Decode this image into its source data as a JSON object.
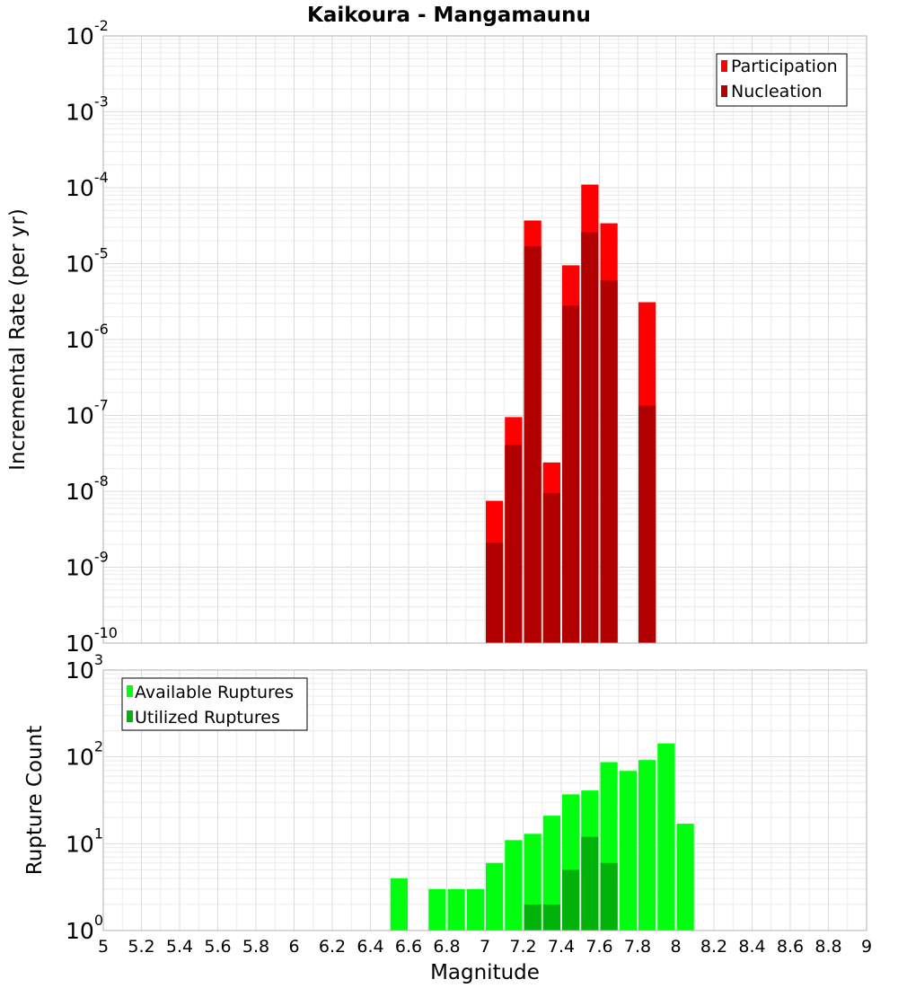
{
  "chart_data": [
    {
      "type": "bar",
      "title": "Kaikoura - Mangamaunu",
      "ylabel": "Incremental Rate (per yr)",
      "xlabel": "",
      "yscale": "log",
      "ylim_exp": [
        -10,
        -2
      ],
      "y_tick_exponents": [
        "-2",
        "-3",
        "-4",
        "-5",
        "-6",
        "-7",
        "-8",
        "-9",
        "-10"
      ],
      "legend": {
        "placement": "top-right",
        "entries": [
          "Participation",
          "Nucleation"
        ]
      },
      "grid": true,
      "bar_width": 0.1,
      "x": [
        7.05,
        7.15,
        7.25,
        7.35,
        7.45,
        7.55,
        7.65,
        7.85
      ],
      "series": [
        {
          "name": "Participation",
          "color": "#ff0000",
          "values": [
            7.5e-09,
            9.5e-08,
            3.7e-05,
            2.4e-08,
            9.5e-06,
            0.00011,
            3.4e-05,
            3.1e-06
          ]
        },
        {
          "name": "Nucleation",
          "color": "#b20000",
          "values": [
            2.1e-09,
            4.1e-08,
            1.7e-05,
            9.5e-09,
            2.8e-06,
            2.6e-05,
            6e-06,
            1.35e-07
          ]
        }
      ]
    },
    {
      "type": "bar",
      "ylabel": "Rupture Count",
      "xlabel": "Magnitude",
      "yscale": "log",
      "ylim_exp": [
        0,
        3
      ],
      "y_tick_exponents": [
        "3",
        "2",
        "1",
        "0"
      ],
      "legend": {
        "placement": "top-left",
        "entries": [
          "Available Ruptures",
          "Utilized Ruptures"
        ]
      },
      "grid": true,
      "bar_width": 0.1,
      "x": [
        6.55,
        6.75,
        6.85,
        6.95,
        7.05,
        7.15,
        7.25,
        7.35,
        7.45,
        7.55,
        7.65,
        7.75,
        7.85,
        7.95,
        8.05
      ],
      "series": [
        {
          "name": "Available Ruptures",
          "color": "#00ff0f",
          "values": [
            4,
            3,
            3,
            3,
            6,
            11,
            13,
            21,
            37,
            41,
            87,
            69,
            92,
            143,
            17
          ]
        },
        {
          "name": "Utilized Ruptures",
          "color": "#00b20a",
          "values": [
            null,
            null,
            null,
            null,
            1,
            1,
            2,
            2,
            5,
            12,
            6,
            null,
            1,
            null,
            null
          ]
        }
      ]
    }
  ],
  "x_axis": {
    "range": [
      5,
      9
    ],
    "tick_labels": [
      "5",
      "5.2",
      "5.4",
      "5.6",
      "5.8",
      "6",
      "6.2",
      "6.4",
      "6.6",
      "6.8",
      "7",
      "7.2",
      "7.4",
      "7.6",
      "7.8",
      "8",
      "8.2",
      "8.4",
      "8.6",
      "8.8",
      "9"
    ]
  }
}
